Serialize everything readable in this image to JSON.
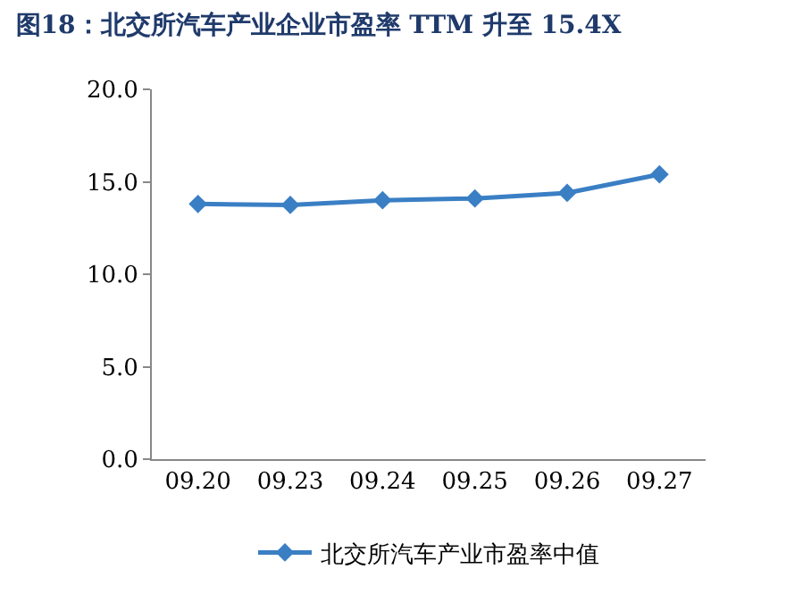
{
  "chart_data": {
    "type": "line",
    "title": "图18：北交所汽车产业企业市盈率 TTM 升至 15.4X",
    "categories": [
      "09.20",
      "09.23",
      "09.24",
      "09.25",
      "09.26",
      "09.27"
    ],
    "series": [
      {
        "name": "北交所汽车产业市盈率中值",
        "color": "#3a7fc4",
        "values": [
          13.8,
          13.75,
          14.0,
          14.1,
          14.4,
          15.4
        ]
      }
    ],
    "ylim": [
      0,
      20
    ],
    "yticks": [
      {
        "value": 0,
        "label": "0.0"
      },
      {
        "value": 5,
        "label": "5.0"
      },
      {
        "value": 10,
        "label": "10.0"
      },
      {
        "value": 15,
        "label": "15.0"
      },
      {
        "value": 20,
        "label": "20.0"
      }
    ],
    "grid": false,
    "legend": "bottom",
    "marker": "diamond",
    "line_style": "solid"
  }
}
